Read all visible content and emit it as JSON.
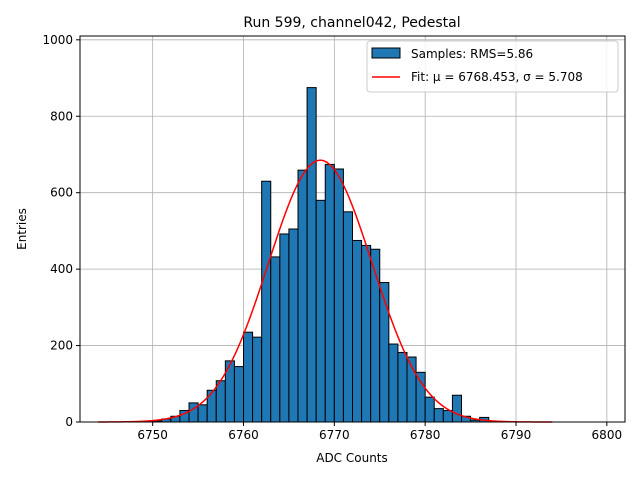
{
  "chart_data": {
    "type": "bar",
    "title": "Run 599, channel042, Pedestal",
    "xlabel": "ADC Counts",
    "ylabel": "Entries",
    "xlim": [
      6742,
      6802
    ],
    "ylim": [
      0,
      1010
    ],
    "xticks": [
      6750,
      6760,
      6770,
      6780,
      6790,
      6800
    ],
    "yticks": [
      0,
      200,
      400,
      600,
      800,
      1000
    ],
    "grid": true,
    "legend_position": "top-right",
    "histogram": {
      "name": "Samples: RMS=5.86",
      "color": "#1f77b4",
      "edgecolor": "#000000",
      "bin_edges": [
        6750,
        6751,
        6752,
        6753,
        6754,
        6755,
        6756,
        6757,
        6758,
        6759,
        6760,
        6761,
        6762,
        6763,
        6764,
        6765,
        6766,
        6767,
        6768,
        6769,
        6770,
        6771,
        6772,
        6773,
        6774,
        6775,
        6776,
        6777,
        6778,
        6779,
        6780,
        6781,
        6782,
        6783,
        6784,
        6785,
        6786,
        6787
      ],
      "counts": [
        3,
        8,
        15,
        30,
        50,
        45,
        83,
        108,
        160,
        145,
        235,
        222,
        630,
        432,
        492,
        505,
        659,
        875,
        580,
        674,
        662,
        550,
        475,
        462,
        452,
        365,
        204,
        182,
        170,
        130,
        65,
        35,
        30,
        70,
        15,
        5,
        12
      ]
    },
    "fit": {
      "name": "Fit: μ = 6768.453, σ = 5.708",
      "color": "#ff0000",
      "mu": 6768.453,
      "sigma": 5.708,
      "amplitude": 685,
      "x_range": [
        6744,
        6794
      ]
    }
  }
}
